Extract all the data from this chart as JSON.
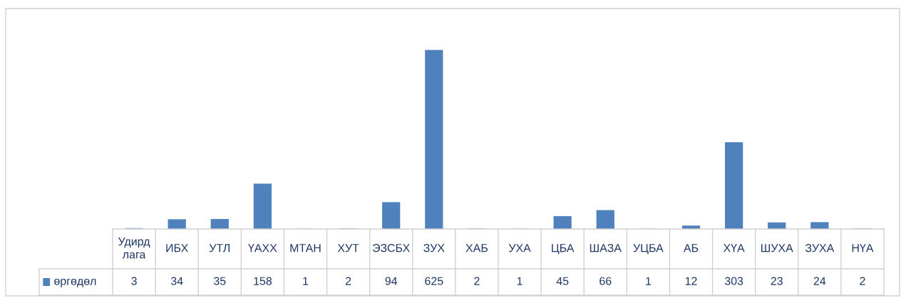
{
  "chart_data": {
    "type": "bar",
    "categories": [
      "Удирд\nлага",
      "ИБХ",
      "УТЛ",
      "ҮАХХ",
      "МТАН",
      "ХУТ",
      "ЭЗСБХ",
      "ЗУХ",
      "ХАБ",
      "УХА",
      "ЦБА",
      "ШАЗА",
      "УЦБА",
      "АБ",
      "ХҮА",
      "ШУХА",
      "ЗУХА",
      "НҮА"
    ],
    "series": [
      {
        "name": "өргөдөл",
        "color": "#4f81bd",
        "values": [
          3,
          34,
          35,
          158,
          1,
          2,
          94,
          625,
          2,
          1,
          45,
          66,
          1,
          12,
          303,
          23,
          24,
          2
        ]
      }
    ],
    "data_labels": true,
    "legend": "bottom left"
  }
}
